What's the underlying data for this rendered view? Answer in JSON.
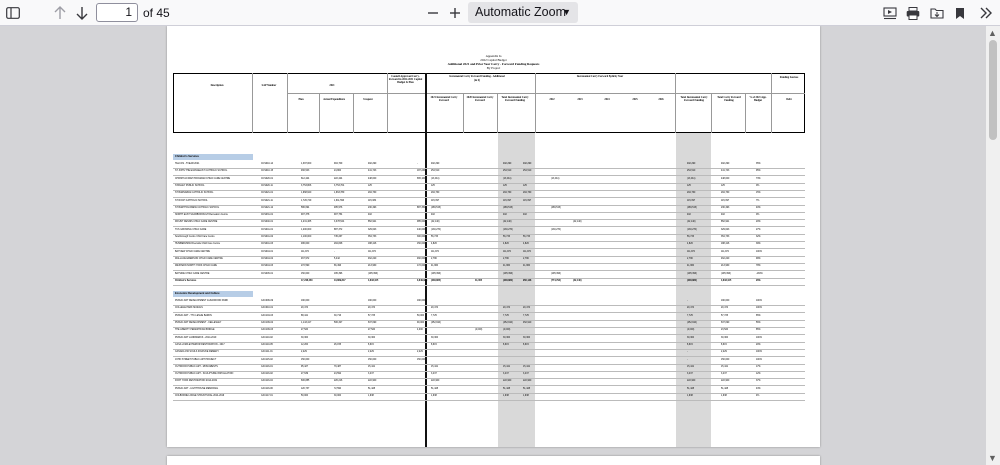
{
  "toolbar": {
    "page_number": "1",
    "page_count": "of 45",
    "zoom": "Automatic Zoom",
    "icons": [
      "sidebar-icon",
      "up-arrow-icon",
      "down-arrow-icon",
      "zoom-out-icon",
      "zoom-in-icon",
      "presentation-icon",
      "print-icon",
      "save-icon",
      "bookmark-icon",
      "tools-icon"
    ]
  },
  "doc": {
    "header_lines": [
      "Appendix Ia",
      "2022 Capital Budget",
      "Additional 2021 and Prior Year Carry - Forward Funding Requests",
      "By Project"
    ],
    "columns": {
      "description": "Description",
      "sap": "SAP Number",
      "year2021": "2021",
      "plan": "Plan",
      "actual": "Actual Expenditure",
      "unspent": "Unspent",
      "council": "Council Approved Carry-Forward in 2022-2031 Capital Budget & Plan",
      "incremental_add": "Incremental Carry Forward Funding - Additional",
      "incremental_add_sub": "(in $)",
      "incremental_eq": "Incremental Carry Forward Eplicity Year",
      "c2021inc": "2021 Incremental Carry Forward",
      "c2020inc": "2020 Incremental Carry Forward",
      "total_inc": "Total Incremental Carry Forward Funding",
      "y2022": "2022",
      "y2023": "2023",
      "y2024": "2024",
      "y2025": "2025",
      "y2026": "2026",
      "total_inc2": "Total Incremental Carry Forward Funding",
      "total_carry": "Total Carry Forward Funding",
      "pct_app": "% of 2021 App. Budget",
      "funding_sources": "Funding Sources",
      "debt": "Debt"
    },
    "sections": [
      {
        "name": "Children's Services",
        "rows": [
          {
            "d": "TELCCS - 5YEAR 2021",
            "n": "CCS010-14",
            "v": [
              "1,397,000",
              "904,709",
              "492,290",
              "-",
              "492,290",
              "",
              "",
              "492,290",
              "492,290",
              "",
              "",
              "",
              "",
              "492,290",
              "492,290",
              "35%",
              ""
            ]
          },
          {
            "d": "ST JOHN THE EVANGELIST CATHOLIC SCHOOL",
            "n": "CCS010-15",
            "v": [
              "466,543",
              "24,800",
              "441,743",
              "187,233",
              "254,510",
              "",
              "",
              "254,510",
              "254,510",
              "",
              "",
              "",
              "",
              "254,510",
              "441,743",
              "95%",
              ""
            ]
          },
          {
            "d": "CHRISTIAN MAP PROGRAM CHILD CARE CENTRE",
            "n": "CCS020-01",
            "v": [
              "612,424",
              "222,424",
              "448,000",
              "665,100",
              "(13,011)",
              "",
              "",
              "(13,011)",
              "",
              "(13,011)",
              "",
              "",
              "",
              "(13,011)",
              "448,000",
              "73%",
              ""
            ]
          },
          {
            "d": "STANLEY PUBLIC SCHOOL",
            "n": "CCS020-11",
            "v": [
              "3,753,806",
              "3,753,704",
              "125",
              "",
              "125",
              "",
              "",
              "125",
              "125",
              "",
              "",
              "",
              "",
              "125",
              "125",
              "0%",
              ""
            ]
          },
          {
            "d": "ST BARNABAS CATHOLIC SCHOOL",
            "n": "CCS021-01",
            "v": [
              "1,968,620",
              "1,663,789",
              "294,760",
              "",
              "294,760",
              "",
              "",
              "294,760",
              "294,760",
              "",
              "",
              "",
              "",
              "294,760",
              "294,760",
              "15%",
              ""
            ]
          },
          {
            "d": "ST ROCH CATHOLIC SCHOOL",
            "n": "CCS021-11",
            "v": [
              "1,726,749",
              "1,611,596",
              "115,384",
              "",
              "115,397",
              "",
              "",
              "115,397",
              "115,397",
              "",
              "",
              "",
              "",
              "115,397",
              "115,397",
              "7%",
              ""
            ]
          },
          {
            "d": "ST BARTHOLOMEW CATHOLIC SCHOOL",
            "n": "CCS021-12",
            "v": [
              "586,694",
              "485,976",
              "230,493",
              "887,351",
              "(489,515)",
              "",
              "",
              "(489,515)",
              "",
              "(489,515)",
              "",
              "",
              "",
              "(489,515)",
              "230,493",
              "40%",
              ""
            ]
          },
          {
            "d": "NORTH EAST SCARBOROUGH Recreation Centre",
            "n": "CCS031-01",
            "v": [
              "907,378",
              "907,754",
              "402",
              "",
              "402",
              "",
              "",
              "402",
              "402",
              "",
              "",
              "",
              "",
              "402",
              "402",
              "0%",
              ""
            ]
          },
          {
            "d": "MOUNT DENNIS CHILD CARE CENTRE",
            "n": "CCS040-01",
            "v": [
              "4,231,465",
              "3,378,544",
              "852,921",
              "985,000",
              "(42,140)",
              "",
              "",
              "(42,140)",
              "",
              "",
              "(42,140)",
              "",
              "",
              "(42,140)",
              "852,921",
              "20%",
              ""
            ]
          },
          {
            "d": "TCS GROWING CHILD CARE",
            "n": "CCS041-01",
            "v": [
              "1,200,000",
              "887,372",
              "329,623",
              "440,000",
              "(130,270)",
              "",
              "",
              "(130,270)",
              "",
              "(130,270)",
              "",
              "",
              "",
              "(130,270)",
              "329,623",
              "27%",
              ""
            ]
          },
          {
            "d": "Scarborough Centre Child Care Centre",
            "n": "CCS041-02",
            "v": [
              "1,100,000",
              "745,267",
              "354,733",
              "300,000",
              "56,733",
              "",
              "",
              "56,733",
              "56,733",
              "",
              "",
              "",
              "",
              "56,733",
              "354,733",
              "32%",
              ""
            ]
          },
          {
            "d": "HUMBERVIEW Riverside Child Care Centre",
            "n": "CCS041-03",
            "v": [
              "486,000",
              "294,848",
              "188,416",
              "150,000",
              "4,826",
              "",
              "",
              "4,826",
              "4,826",
              "",
              "",
              "",
              "",
              "4,826",
              "188,416",
              "39%",
              ""
            ]
          },
          {
            "d": "BAYVIEW CHILD CARE CENTRE",
            "n": "CCS044-01",
            "v": [
              "111,972",
              "-",
              "111,972",
              "",
              "111,972",
              "",
              "",
              "111,972",
              "111,972",
              "",
              "",
              "",
              "",
              "111,972",
              "111,972",
              "100%",
              ""
            ]
          },
          {
            "d": "WALLACE EMERSON CHILD CARE CENTRE",
            "n": "CCS044-02",
            "v": [
              "467,972",
              "5,442",
              "462,220",
              "460,000",
              "2,780",
              "",
              "",
              "2,780",
              "2,780",
              "",
              "",
              "",
              "",
              "2,780",
              "462,220",
              "99%",
              ""
            ]
          },
          {
            "d": "WESTERN NORTH YORK CHILD CARE",
            "n": "CCS044-03",
            "v": [
              "272,590",
              "66,496",
              "213,960",
              "172,000",
              "41,960",
              "",
              "",
              "41,960",
              "41,960",
              "",
              "",
              "",
              "",
              "41,960",
              "213,960",
              "78%",
              ""
            ]
          },
          {
            "d": "BAYSIDE CHILD CARE CENTRE",
            "n": "CCS045-01",
            "v": [
              "150,000",
              "195,396",
              "(195,396)",
              "",
              "(195,396)",
              "",
              "",
              "(195,396)",
              "",
              "(195,396)",
              "",
              "",
              "",
              "(195,396)",
              "(195,396)",
              "-130%",
              ""
            ]
          }
        ],
        "total": {
          "d": "Children's Services",
          "v": [
            "17,248,460",
            "13,869,817",
            "4,633,105",
            "3,649,684",
            "(238,865)",
            "41,005",
            "",
            "(208,880)",
            "956,128",
            "(774,794)",
            "(42,140)",
            "",
            "",
            "(208,880)",
            "4,633,105",
            "26%",
            ""
          ]
        }
      },
      {
        "name": "Economic Development and Culture",
        "rows": [
          {
            "d": "PUBLIC ART DEVELOPMENT GUILDWOOD PARK",
            "n": "CAC006-09",
            "v": [
              "190,000",
              "",
              "190,000",
              "190,000",
              "",
              "",
              "",
              "",
              "",
              "",
              "",
              "",
              "",
              "-",
              "190,000",
              "100%",
              ""
            ]
          },
          {
            "d": "COLLEGE PARK MURALS",
            "n": "CAC010-01",
            "v": [
              "20,474",
              "",
              "20,474",
              "",
              "20,474",
              "",
              "",
              "20,474",
              "20,474",
              "",
              "",
              "",
              "",
              "20,474",
              "20,474",
              "100%",
              ""
            ]
          },
          {
            "d": "PUBLIC ART - TTC LESLIE BARNS",
            "n": "CAC104-03",
            "v": [
              "88,441",
              "30,716",
              "57,725",
              "50,000",
              "7,725",
              "",
              "",
              "7,725",
              "7,725",
              "",
              "",
              "",
              "",
              "7,725",
              "57,725",
              "65%",
              ""
            ]
          },
          {
            "d": "PUBLIC ART DEVELOPMENT - KELLESLEY",
            "n": "CAC109-02",
            "v": [
              "1,143,417",
              "506,327",
              "637,090",
              "90,000",
              "(452,910)",
              "",
              "",
              "(452,910)",
              "452,910",
              "",
              "",
              "",
              "",
              "(452,910)",
              "637,090",
              "56%",
              ""
            ]
          },
          {
            "d": "THE LIBERTY PEDESTRIAN BRIDGE",
            "n": "CAC109-03",
            "v": [
              "27,520",
              "",
              "27,520",
              "4,000",
              "",
              "(4,000)",
              "",
              "(4,000)",
              "",
              "",
              "",
              "",
              "",
              "(4,000)",
              "23,520",
              "85%",
              ""
            ]
          },
          {
            "d": "PUBLIC ART LANDMARKS - 2014-2019",
            "n": "CAC110-02",
            "v": [
              "30,300",
              "",
              "30,300",
              "",
              "30,300",
              "",
              "",
              "30,300",
              "30,300",
              "",
              "",
              "",
              "",
              "30,300",
              "30,300",
              "100%",
              ""
            ]
          },
          {
            "d": "CASA LOMA EXTERIOR RESTORATION - 2017",
            "n": "CAC110-05",
            "v": [
              "12,200",
              "26,155",
              "8,615",
              "",
              "8,615",
              "",
              "",
              "8,615",
              "8,615",
              "",
              "",
              "",
              "",
              "8,615",
              "8,615",
              "20%",
              ""
            ]
          },
          {
            "d": "CANADA 150 SOULS INVASIVE REMEDY",
            "n": "CAC111-01",
            "v": [
              "2,229",
              "",
              "2,229",
              "2,229",
              "",
              "",
              "",
              "",
              "",
              "",
              "",
              "",
              "",
              "-",
              "2,229",
              "100%",
              ""
            ]
          },
          {
            "d": "JOHN STREET PUBLIC ART PROJECT",
            "n": "CAC115-02",
            "v": [
              "150,000",
              "",
              "150,000",
              "150,000",
              "",
              "",
              "",
              "",
              "",
              "",
              "",
              "",
              "",
              "-",
              "150,000",
              "100%",
              ""
            ]
          },
          {
            "d": "OUTDOOR PUBLIC ART - MONUMENTS",
            "n": "CAC116-01",
            "v": [
              "95,427",
              "79,487",
              "15,441",
              "",
              "15,441",
              "",
              "",
              "15,441",
              "15,441",
              "",
              "",
              "",
              "",
              "15,441",
              "15,441",
              "17%",
              ""
            ]
          },
          {
            "d": "OUTDOOR PUBLIC ART - SCULPTURE INSTALLATION",
            "n": "CAC116-02",
            "v": [
              "27,639",
              "24,592",
              "3,437",
              "",
              "3,437",
              "",
              "",
              "3,437",
              "3,437",
              "",
              "",
              "",
              "",
              "3,437",
              "3,437",
              "12%",
              ""
            ]
          },
          {
            "d": "FORT YORK RESTORATION 2014-2019",
            "n": "CAC116-04",
            "v": [
              "606,885",
              "226,216",
              "222,900",
              "",
              "222,900",
              "",
              "",
              "222,900",
              "222,900",
              "",
              "",
              "",
              "",
              "222,900",
              "222,900",
              "37%",
              ""
            ]
          },
          {
            "d": "PUBLIC ART - LIGHTHOUSE MEMORIAL",
            "n": "CAC116-06",
            "v": [
              "120,737",
              "72,590",
              "51,428",
              "",
              "51,428",
              "",
              "",
              "51,428",
              "51,428",
              "",
              "",
              "",
              "",
              "51,428",
              "51,428",
              "43%",
              ""
            ]
          },
          {
            "d": "COLBORNE LODGE STRUCTURAL 2014-2019",
            "n": "CAC117-01",
            "v": [
              "50,000",
              "30,000",
              "1,938",
              "",
              "1,938",
              "",
              "",
              "1,938",
              "1,938",
              "",
              "",
              "",
              "",
              "1,938",
              "1,938",
              "4%",
              ""
            ]
          }
        ]
      }
    ]
  }
}
